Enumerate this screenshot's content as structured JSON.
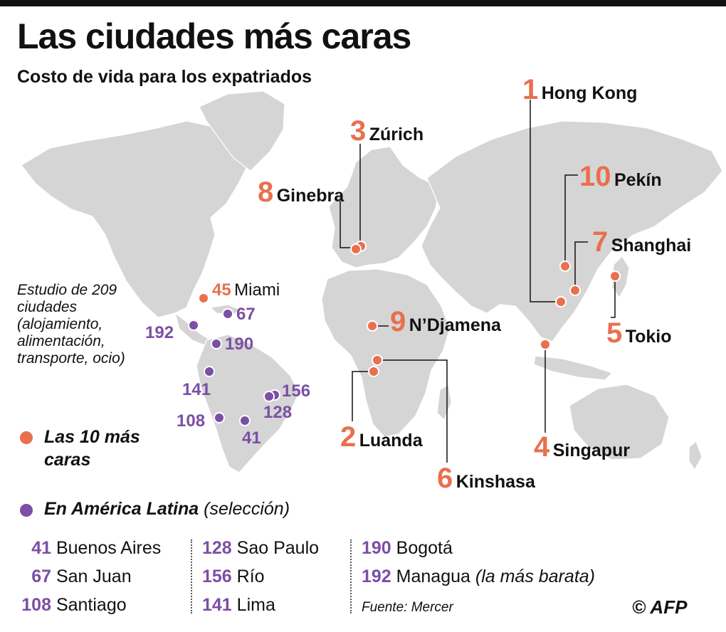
{
  "title": "Las ciudades más caras",
  "subtitle": "Costo de vida para los expatriados",
  "study_note": "Estudio de 209 ciudades (alojamiento, alimentación, transporte, ocio)",
  "legend": {
    "top10": "Las 10 más caras",
    "latam_main": "En América Latina",
    "latam_sel": "(selección)"
  },
  "top10": [
    {
      "rank": "1",
      "city": "Hong Kong"
    },
    {
      "rank": "2",
      "city": "Luanda"
    },
    {
      "rank": "3",
      "city": "Zúrich"
    },
    {
      "rank": "4",
      "city": "Singapur"
    },
    {
      "rank": "5",
      "city": "Tokio"
    },
    {
      "rank": "6",
      "city": "Kinshasa"
    },
    {
      "rank": "7",
      "city": "Shanghai"
    },
    {
      "rank": "8",
      "city": "Ginebra"
    },
    {
      "rank": "9",
      "city": "N’Djamena"
    },
    {
      "rank": "10",
      "city": "Pekín"
    }
  ],
  "map_extra": {
    "miami_rank": "45",
    "miami_city": "Miami"
  },
  "map_latam_ranks": [
    "67",
    "192",
    "190",
    "141",
    "156",
    "128",
    "108",
    "41"
  ],
  "latam_table": [
    {
      "rank": "41",
      "city": "Buenos Aires"
    },
    {
      "rank": "67",
      "city": "San Juan"
    },
    {
      "rank": "108",
      "city": "Santiago"
    },
    {
      "rank": "128",
      "city": "Sao Paulo"
    },
    {
      "rank": "156",
      "city": "Río"
    },
    {
      "rank": "141",
      "city": "Lima"
    },
    {
      "rank": "190",
      "city": "Bogotá"
    },
    {
      "rank": "192",
      "city": "Managua",
      "note": "(la más barata)"
    }
  ],
  "source": "Fuente: Mercer",
  "credit": "© AFP",
  "colors": {
    "top10": "#E8704E",
    "latam": "#7B4FA5",
    "land": "#D5D5D5",
    "border": "#FFFFFF"
  }
}
